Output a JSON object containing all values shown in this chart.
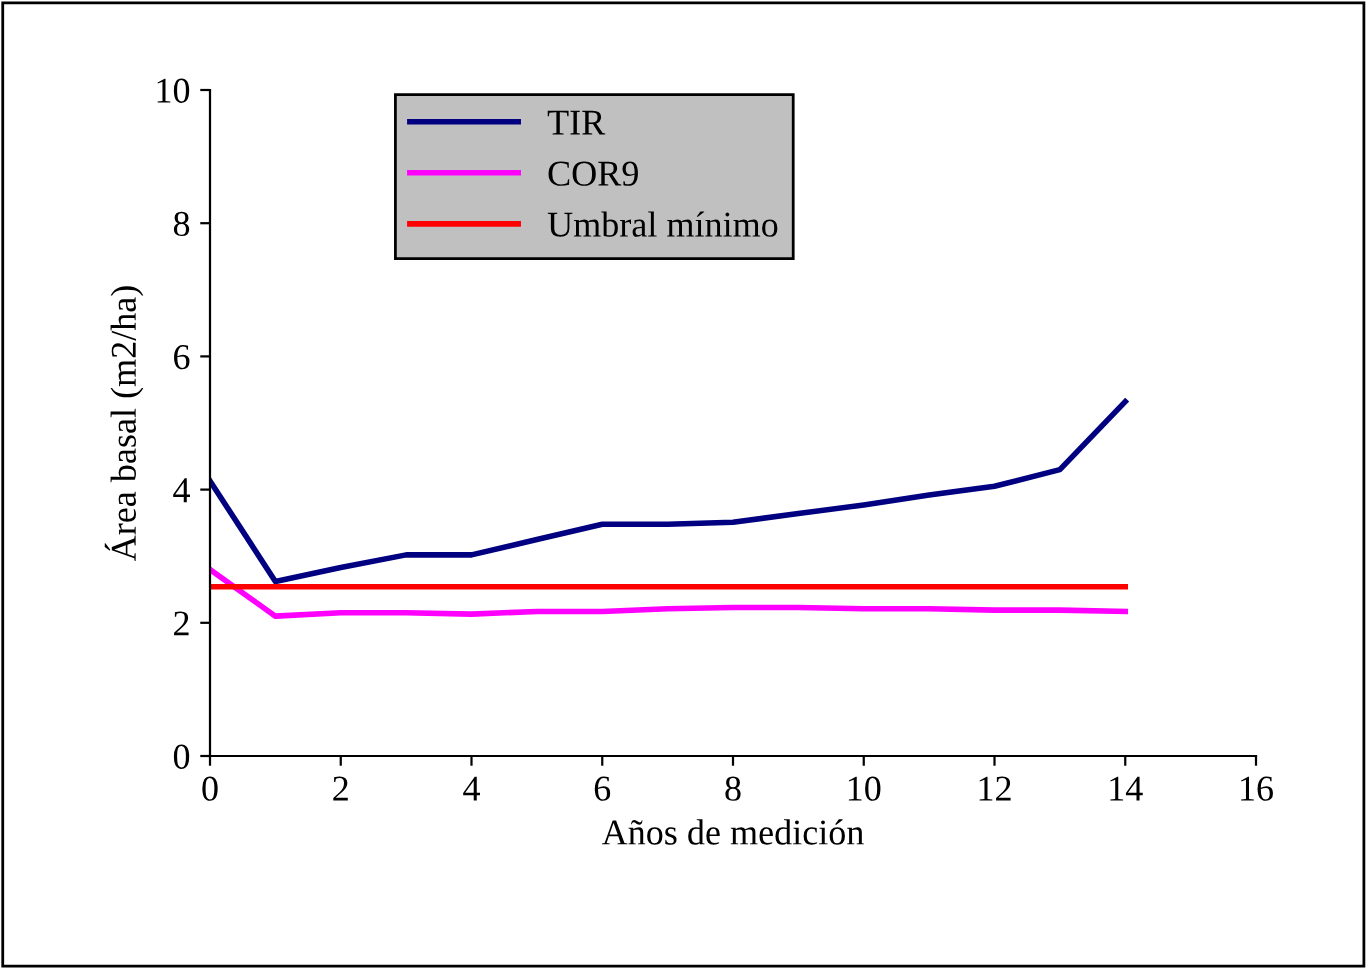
{
  "chart_data": {
    "type": "line",
    "xlabel": "Años de medición",
    "ylabel": "Área basal (m2/ha)",
    "x": [
      0,
      1,
      2,
      3,
      4,
      5,
      6,
      7,
      8,
      9,
      10,
      11,
      12,
      13,
      14
    ],
    "series": [
      {
        "name": "TIR",
        "color": "#000080",
        "values": [
          4.13,
          2.62,
          2.83,
          3.02,
          3.02,
          3.25,
          3.48,
          3.48,
          3.51,
          3.64,
          3.77,
          3.92,
          4.05,
          4.3,
          5.32
        ]
      },
      {
        "name": "COR9",
        "color": "#ff00ff",
        "values": [
          2.8,
          2.1,
          2.15,
          2.15,
          2.13,
          2.17,
          2.17,
          2.21,
          2.23,
          2.23,
          2.21,
          2.21,
          2.19,
          2.19,
          2.17
        ]
      },
      {
        "name": "Umbral mínimo",
        "color": "#ff0000",
        "values": [
          2.54,
          2.54,
          2.54,
          2.54,
          2.54,
          2.54,
          2.54,
          2.54,
          2.54,
          2.54,
          2.54,
          2.54,
          2.54,
          2.54,
          2.54
        ]
      }
    ],
    "xlim": [
      0,
      16
    ],
    "xticks": [
      0,
      2,
      4,
      6,
      8,
      10,
      12,
      14,
      16
    ],
    "ylim": [
      0,
      10
    ],
    "yticks": [
      0,
      2,
      4,
      6,
      8,
      10
    ],
    "grid": false,
    "legend": "top",
    "marker": "none",
    "line_style": "solid"
  }
}
